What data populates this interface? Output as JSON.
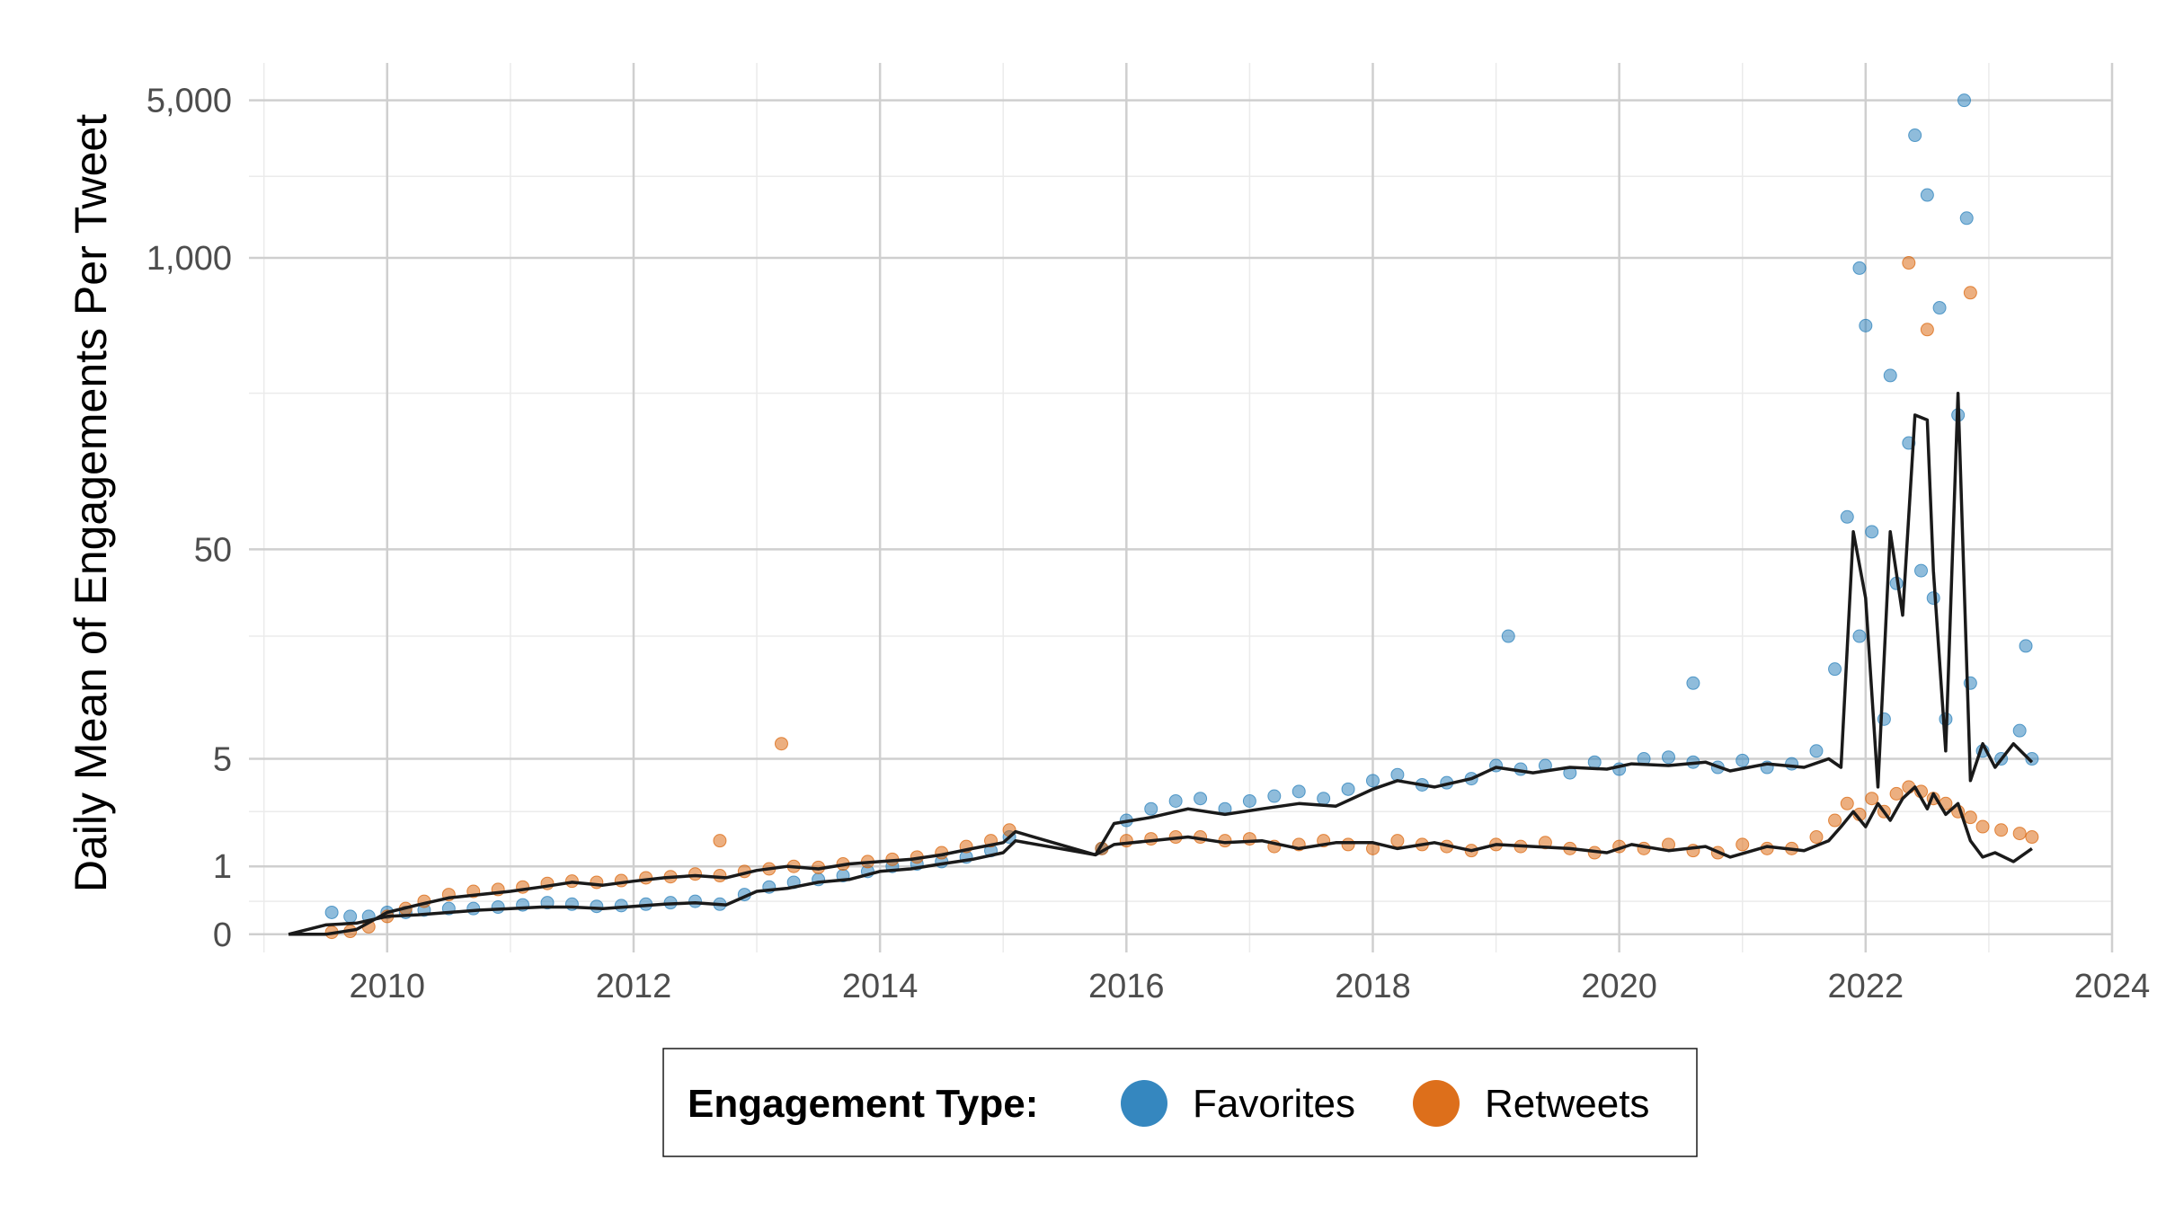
{
  "chart_data": {
    "type": "scatter",
    "title": "",
    "xlabel": "",
    "ylabel": "Daily Mean of Engagements Per Tweet",
    "y_scale": "pseudo-log",
    "x_ticks": [
      "2010",
      "2012",
      "2014",
      "2016",
      "2018",
      "2020",
      "2022",
      "2024"
    ],
    "y_ticks": [
      "0",
      "1",
      "5",
      "50",
      "1,000",
      "5,000"
    ],
    "xlim": [
      2008.9,
      2024.0
    ],
    "ylim": [
      -0.15,
      7000
    ],
    "grid": true,
    "legend": {
      "title": "Engagement Type:",
      "position": "bottom",
      "entries": [
        "Favorites",
        "Retweets"
      ]
    },
    "colors": {
      "Favorites": "#1f7ab8",
      "Retweets": "#d95f02",
      "trend": "#1a1a1a"
    },
    "series": [
      {
        "name": "Favorites",
        "x": [
          2009.55,
          2009.7,
          2009.85,
          2010.0,
          2010.15,
          2010.3,
          2010.5,
          2010.7,
          2010.9,
          2011.1,
          2011.3,
          2011.5,
          2011.7,
          2011.9,
          2012.1,
          2012.3,
          2012.5,
          2012.7,
          2012.9,
          2013.1,
          2013.3,
          2013.5,
          2013.7,
          2013.9,
          2014.1,
          2014.3,
          2014.5,
          2014.7,
          2014.9,
          2015.05,
          2015.8,
          2016.0,
          2016.2,
          2016.4,
          2016.6,
          2016.8,
          2017.0,
          2017.2,
          2017.4,
          2017.6,
          2017.8,
          2018.0,
          2018.2,
          2018.4,
          2018.6,
          2018.8,
          2019.0,
          2019.2,
          2019.4,
          2019.6,
          2019.8,
          2020.0,
          2020.2,
          2020.4,
          2020.6,
          2020.8,
          2021.0,
          2021.2,
          2021.4,
          2021.6,
          2021.75,
          2021.85,
          2021.95,
          2022.05,
          2022.15,
          2022.25,
          2022.35,
          2022.45,
          2022.55,
          2022.65,
          2022.75,
          2022.85,
          2022.95,
          2023.1,
          2023.25,
          2023.35,
          2019.1,
          2020.6,
          2021.95,
          2022.4,
          2022.5,
          2022.8,
          2022.82,
          2022.0,
          2022.2,
          2022.6,
          2023.3
        ],
        "y": [
          0.25,
          0.2,
          0.2,
          0.25,
          0.25,
          0.28,
          0.3,
          0.3,
          0.32,
          0.35,
          0.38,
          0.36,
          0.33,
          0.34,
          0.36,
          0.38,
          0.4,
          0.36,
          0.5,
          0.62,
          0.7,
          0.75,
          0.82,
          0.9,
          1.0,
          1.05,
          1.1,
          1.2,
          1.35,
          1.7,
          1.4,
          2.2,
          2.6,
          2.9,
          3.0,
          2.6,
          2.9,
          3.1,
          3.3,
          3.0,
          3.4,
          3.8,
          4.1,
          3.6,
          3.7,
          3.9,
          4.6,
          4.4,
          4.6,
          4.2,
          4.8,
          4.4,
          5.0,
          5.1,
          4.8,
          4.5,
          4.9,
          4.5,
          4.7,
          5.5,
          14,
          70,
          20,
          60,
          8,
          35,
          150,
          40,
          30,
          8,
          200,
          12,
          5.5,
          5.0,
          7.0,
          5.0,
          20,
          12,
          900,
          3500,
          1900,
          5000,
          1500,
          500,
          300,
          600,
          18
        ]
      },
      {
        "name": "Retweets",
        "x": [
          2009.55,
          2009.7,
          2009.85,
          2010.0,
          2010.15,
          2010.3,
          2010.5,
          2010.7,
          2010.9,
          2011.1,
          2011.3,
          2011.5,
          2011.7,
          2011.9,
          2012.1,
          2012.3,
          2012.5,
          2012.7,
          2012.9,
          2013.1,
          2013.3,
          2013.5,
          2013.7,
          2013.9,
          2014.1,
          2014.3,
          2014.5,
          2014.7,
          2014.9,
          2015.05,
          2015.8,
          2016.0,
          2016.2,
          2016.4,
          2016.6,
          2016.8,
          2017.0,
          2017.2,
          2017.4,
          2017.6,
          2017.8,
          2018.0,
          2018.2,
          2018.4,
          2018.6,
          2018.8,
          2019.0,
          2019.2,
          2019.4,
          2019.6,
          2019.8,
          2020.0,
          2020.2,
          2020.4,
          2020.6,
          2020.8,
          2021.0,
          2021.2,
          2021.4,
          2021.6,
          2021.75,
          2021.85,
          2021.95,
          2022.05,
          2022.15,
          2022.25,
          2022.35,
          2022.45,
          2022.55,
          2022.65,
          2022.75,
          2022.85,
          2022.95,
          2023.1,
          2023.25,
          2023.35,
          2013.2,
          2012.7,
          2022.35,
          2022.85,
          2022.5
        ],
        "y": [
          0.02,
          0.03,
          0.08,
          0.2,
          0.3,
          0.4,
          0.5,
          0.55,
          0.58,
          0.62,
          0.68,
          0.72,
          0.7,
          0.73,
          0.78,
          0.8,
          0.85,
          0.82,
          0.9,
          0.95,
          1.0,
          0.98,
          1.05,
          1.1,
          1.15,
          1.2,
          1.3,
          1.45,
          1.6,
          1.9,
          1.4,
          1.6,
          1.65,
          1.7,
          1.7,
          1.6,
          1.65,
          1.45,
          1.5,
          1.6,
          1.5,
          1.4,
          1.6,
          1.5,
          1.45,
          1.35,
          1.5,
          1.45,
          1.55,
          1.4,
          1.3,
          1.45,
          1.4,
          1.5,
          1.35,
          1.3,
          1.5,
          1.4,
          1.4,
          1.7,
          2.2,
          2.8,
          2.4,
          3.0,
          2.5,
          3.2,
          3.5,
          3.3,
          3.0,
          2.8,
          2.5,
          2.3,
          2.0,
          1.9,
          1.8,
          1.7,
          6.0,
          1.6,
          950,
          700,
          480
        ]
      }
    ],
    "trend_lines": [
      {
        "name": "Favorites",
        "x": [
          2009.2,
          2009.5,
          2009.75,
          2010.0,
          2010.25,
          2010.5,
          2010.75,
          2011.0,
          2011.25,
          2011.5,
          2011.75,
          2012.0,
          2012.25,
          2012.5,
          2012.75,
          2013.0,
          2013.25,
          2013.5,
          2013.75,
          2014.0,
          2014.25,
          2014.5,
          2014.75,
          2015.0,
          2015.1,
          2015.75,
          2015.9,
          2016.2,
          2016.5,
          2016.8,
          2017.1,
          2017.4,
          2017.7,
          2018.0,
          2018.2,
          2018.5,
          2018.8,
          2019.0,
          2019.3,
          2019.6,
          2019.9,
          2020.1,
          2020.4,
          2020.7,
          2020.9,
          2021.2,
          2021.5,
          2021.7,
          2021.8,
          2021.9,
          2022.0,
          2022.1,
          2022.2,
          2022.3,
          2022.4,
          2022.5,
          2022.55,
          2022.65,
          2022.75,
          2022.85,
          2022.95,
          2023.05,
          2023.2,
          2023.35
        ],
        "y": [
          0.0,
          0.1,
          0.12,
          0.2,
          0.22,
          0.25,
          0.28,
          0.3,
          0.32,
          0.32,
          0.3,
          0.33,
          0.36,
          0.38,
          0.35,
          0.55,
          0.6,
          0.7,
          0.75,
          0.9,
          0.95,
          1.05,
          1.15,
          1.3,
          1.6,
          1.25,
          2.1,
          2.3,
          2.6,
          2.4,
          2.6,
          2.8,
          2.7,
          3.4,
          3.8,
          3.5,
          3.9,
          4.5,
          4.2,
          4.5,
          4.4,
          4.7,
          4.6,
          4.8,
          4.3,
          4.7,
          4.5,
          5.0,
          4.5,
          60,
          30,
          3.5,
          60,
          25,
          200,
          190,
          40,
          5.5,
          250,
          3.8,
          6.0,
          4.5,
          6.0,
          4.8
        ]
      },
      {
        "name": "Retweets",
        "x": [
          2009.2,
          2009.5,
          2009.75,
          2010.0,
          2010.25,
          2010.5,
          2010.75,
          2011.0,
          2011.25,
          2011.5,
          2011.75,
          2012.0,
          2012.25,
          2012.5,
          2012.75,
          2013.0,
          2013.25,
          2013.5,
          2013.75,
          2014.0,
          2014.25,
          2014.5,
          2014.75,
          2015.0,
          2015.1,
          2015.75,
          2015.9,
          2016.2,
          2016.5,
          2016.8,
          2017.1,
          2017.4,
          2017.7,
          2018.0,
          2018.2,
          2018.5,
          2018.8,
          2019.0,
          2019.3,
          2019.6,
          2019.9,
          2020.1,
          2020.4,
          2020.7,
          2020.9,
          2021.2,
          2021.5,
          2021.7,
          2021.8,
          2021.9,
          2022.0,
          2022.1,
          2022.2,
          2022.3,
          2022.4,
          2022.5,
          2022.55,
          2022.65,
          2022.75,
          2022.85,
          2022.95,
          2023.05,
          2023.2,
          2023.35
        ],
        "y": [
          0.0,
          0.0,
          0.05,
          0.25,
          0.35,
          0.45,
          0.5,
          0.55,
          0.62,
          0.7,
          0.65,
          0.72,
          0.78,
          0.82,
          0.78,
          0.92,
          1.0,
          0.95,
          1.05,
          1.1,
          1.15,
          1.25,
          1.4,
          1.55,
          1.85,
          1.25,
          1.5,
          1.6,
          1.7,
          1.55,
          1.6,
          1.4,
          1.55,
          1.55,
          1.4,
          1.55,
          1.35,
          1.5,
          1.45,
          1.4,
          1.3,
          1.5,
          1.35,
          1.45,
          1.2,
          1.45,
          1.35,
          1.6,
          2.0,
          2.5,
          2.0,
          2.8,
          2.2,
          3.0,
          3.5,
          2.6,
          3.2,
          2.4,
          2.8,
          1.6,
          1.2,
          1.3,
          1.1,
          1.4
        ]
      }
    ]
  }
}
